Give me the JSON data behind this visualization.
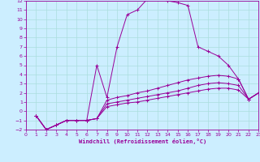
{
  "xlabel": "Windchill (Refroidissement éolien,°C)",
  "bg_color": "#cceeff",
  "line_color": "#990099",
  "grid_color": "#aadddd",
  "xlim": [
    0,
    23
  ],
  "ylim": [
    -2,
    12
  ],
  "x_ticks": [
    0,
    1,
    2,
    3,
    4,
    5,
    6,
    7,
    8,
    9,
    10,
    11,
    12,
    13,
    14,
    15,
    16,
    17,
    18,
    19,
    20,
    21,
    22,
    23
  ],
  "y_ticks": [
    -2,
    -1,
    0,
    1,
    2,
    3,
    4,
    5,
    6,
    7,
    8,
    9,
    10,
    11,
    12
  ],
  "lines": [
    {
      "x": [
        1,
        2,
        3,
        4,
        5,
        6,
        7,
        8,
        9,
        10,
        11,
        12,
        13,
        14,
        15,
        16,
        17,
        18,
        19,
        20,
        21,
        22,
        23
      ],
      "y": [
        -0.5,
        -2.0,
        -1.5,
        -1.0,
        -1.0,
        -1.0,
        5.0,
        1.5,
        7.0,
        10.5,
        11.0,
        12.2,
        12.2,
        12.0,
        11.8,
        11.5,
        7.0,
        6.5,
        6.0,
        5.0,
        3.5,
        1.3,
        2.0
      ]
    },
    {
      "x": [
        1,
        2,
        3,
        4,
        5,
        6,
        7,
        8,
        9,
        10,
        11,
        12,
        13,
        14,
        15,
        16,
        17,
        18,
        19,
        20,
        21,
        22,
        23
      ],
      "y": [
        -0.5,
        -2.0,
        -1.5,
        -1.0,
        -1.0,
        -1.0,
        -0.8,
        1.2,
        1.5,
        1.7,
        2.0,
        2.2,
        2.5,
        2.8,
        3.1,
        3.4,
        3.6,
        3.8,
        3.9,
        3.8,
        3.5,
        1.3,
        2.0
      ]
    },
    {
      "x": [
        1,
        2,
        3,
        4,
        5,
        6,
        7,
        8,
        9,
        10,
        11,
        12,
        13,
        14,
        15,
        16,
        17,
        18,
        19,
        20,
        21,
        22,
        23
      ],
      "y": [
        -0.5,
        -2.0,
        -1.5,
        -1.0,
        -1.0,
        -1.0,
        -0.8,
        0.8,
        1.0,
        1.2,
        1.4,
        1.6,
        1.8,
        2.0,
        2.2,
        2.5,
        2.8,
        3.0,
        3.1,
        3.0,
        2.8,
        1.3,
        2.0
      ]
    },
    {
      "x": [
        1,
        2,
        3,
        4,
        5,
        6,
        7,
        8,
        9,
        10,
        11,
        12,
        13,
        14,
        15,
        16,
        17,
        18,
        19,
        20,
        21,
        22,
        23
      ],
      "y": [
        -0.5,
        -2.0,
        -1.5,
        -1.0,
        -1.0,
        -1.0,
        -0.8,
        0.5,
        0.7,
        0.9,
        1.0,
        1.2,
        1.4,
        1.6,
        1.8,
        2.0,
        2.2,
        2.4,
        2.5,
        2.5,
        2.3,
        1.3,
        2.0
      ]
    }
  ]
}
